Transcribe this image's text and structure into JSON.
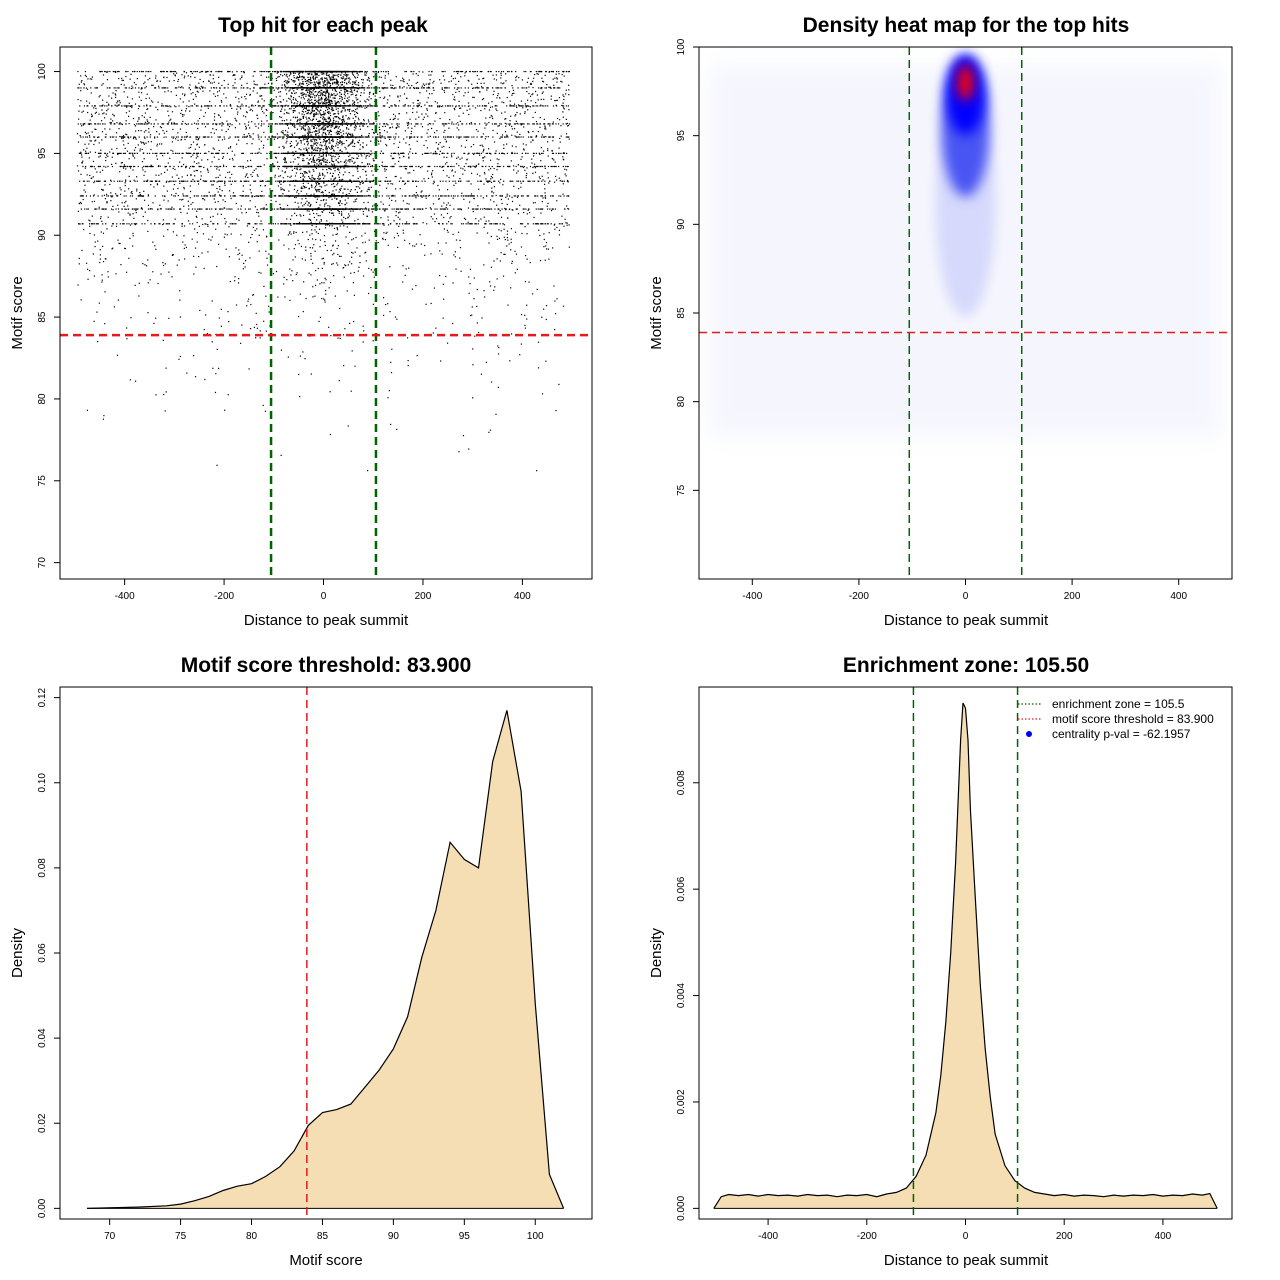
{
  "chart_data": [
    {
      "type": "scatter",
      "title": "Top hit for each peak",
      "xlabel": "Distance to peak summit",
      "ylabel": "Motif score",
      "xlim": [
        -530,
        540
      ],
      "ylim": [
        69,
        101.5
      ],
      "xticks": [
        -400,
        -200,
        0,
        200,
        400
      ],
      "yticks": [
        70,
        75,
        80,
        85,
        90,
        95,
        100
      ],
      "vlines": [
        -105.5,
        105.5
      ],
      "hline": 83.9,
      "line_colors": {
        "vline": "#006400",
        "hline": "#e41a1c"
      },
      "point_color": "#000000",
      "x_range_of_points": [
        -500,
        500
      ],
      "y_range_of_points": [
        70,
        100
      ]
    },
    {
      "type": "heatmap",
      "title": "Density heat map for the top hits",
      "xlabel": "Distance to peak summit",
      "ylabel": "Motif score",
      "xlim": [
        -500,
        500
      ],
      "ylim": [
        70,
        100
      ],
      "xticks": [
        -400,
        -200,
        0,
        200,
        400
      ],
      "yticks": [
        75,
        80,
        85,
        90,
        95,
        100
      ],
      "vlines": [
        -105.5,
        105.5
      ],
      "hline": 83.9,
      "colors": {
        "low": "#ffffff",
        "mid": "#0000ff",
        "high": "#ff0000"
      },
      "density_peak": {
        "x": 0,
        "y": 98
      }
    },
    {
      "type": "area",
      "title": "Motif score threshold: 83.900",
      "xlabel": "Motif score",
      "ylabel": "Density",
      "xlim": [
        66.5,
        104
      ],
      "ylim": [
        -0.0025,
        0.1225
      ],
      "xticks": [
        70,
        75,
        80,
        85,
        90,
        95,
        100
      ],
      "yticks": [
        0,
        0.02,
        0.04,
        0.06,
        0.08,
        0.1,
        0.12
      ],
      "ytick_labels": [
        "0.00",
        "0.02",
        "0.04",
        "0.06",
        "0.08",
        "0.10",
        "0.12"
      ],
      "vline": 83.9,
      "fill": "#f5deb3",
      "x": [
        68.4,
        72,
        74,
        75,
        76,
        77,
        78,
        79,
        80,
        81,
        82,
        83,
        84,
        85,
        86,
        87,
        88,
        89,
        90,
        91,
        92,
        93,
        94,
        95,
        96,
        97,
        98,
        99,
        100,
        101,
        102
      ],
      "values": [
        0,
        0.0003,
        0.0006,
        0.001,
        0.0018,
        0.0028,
        0.0042,
        0.0052,
        0.0058,
        0.0075,
        0.0098,
        0.0135,
        0.0195,
        0.0225,
        0.0232,
        0.0245,
        0.0285,
        0.0325,
        0.0375,
        0.045,
        0.059,
        0.07,
        0.086,
        0.082,
        0.08,
        0.105,
        0.117,
        0.098,
        0.048,
        0.008,
        0
      ]
    },
    {
      "type": "area",
      "title": "Enrichment zone: 105.50",
      "xlabel": "Distance to peak summit",
      "ylabel": "Density",
      "xlim": [
        -540,
        540
      ],
      "ylim": [
        -0.0002,
        0.0098
      ],
      "xticks": [
        -400,
        -200,
        0,
        200,
        400
      ],
      "yticks": [
        0,
        0.002,
        0.004,
        0.006,
        0.008
      ],
      "ytick_labels": [
        "0.000",
        "0.002",
        "0.004",
        "0.006",
        "0.008"
      ],
      "vlines": [
        -105.5,
        105.5
      ],
      "fill": "#f5deb3",
      "x": [
        -510,
        -495,
        -480,
        -460,
        -440,
        -420,
        -400,
        -380,
        -360,
        -340,
        -320,
        -300,
        -280,
        -260,
        -240,
        -220,
        -200,
        -180,
        -160,
        -140,
        -120,
        -100,
        -80,
        -60,
        -50,
        -40,
        -30,
        -20,
        -10,
        -5,
        0,
        5,
        10,
        20,
        30,
        40,
        50,
        60,
        80,
        100,
        120,
        140,
        160,
        180,
        200,
        220,
        240,
        260,
        280,
        300,
        320,
        340,
        360,
        380,
        400,
        420,
        440,
        460,
        480,
        495,
        510
      ],
      "values": [
        0,
        0.00022,
        0.00026,
        0.00024,
        0.00026,
        0.00023,
        0.00026,
        0.00024,
        0.00025,
        0.00023,
        0.00026,
        0.00024,
        0.00025,
        0.00022,
        0.00025,
        0.00024,
        0.00026,
        0.00022,
        0.00027,
        0.0003,
        0.00038,
        0.0006,
        0.001,
        0.0018,
        0.0025,
        0.0035,
        0.0048,
        0.0065,
        0.0088,
        0.0095,
        0.0094,
        0.0088,
        0.0075,
        0.0058,
        0.0042,
        0.003,
        0.0021,
        0.0014,
        0.0008,
        0.00052,
        0.00038,
        0.0003,
        0.00027,
        0.00024,
        0.00026,
        0.00023,
        0.00025,
        0.00024,
        0.00022,
        0.00025,
        0.00023,
        0.00025,
        0.00024,
        0.00026,
        0.00023,
        0.00025,
        0.00024,
        0.00027,
        0.00025,
        0.00028,
        0
      ],
      "legend": [
        {
          "label": "enrichment zone = 105.5",
          "style": "dotted",
          "color": "#006400"
        },
        {
          "label": "motif score threshold = 83.900",
          "style": "dotted",
          "color": "#e41a1c"
        },
        {
          "label": "centrality p-val = -62.1957",
          "style": "point",
          "color": "#0000ff"
        }
      ],
      "legend_position": "top-right"
    }
  ]
}
